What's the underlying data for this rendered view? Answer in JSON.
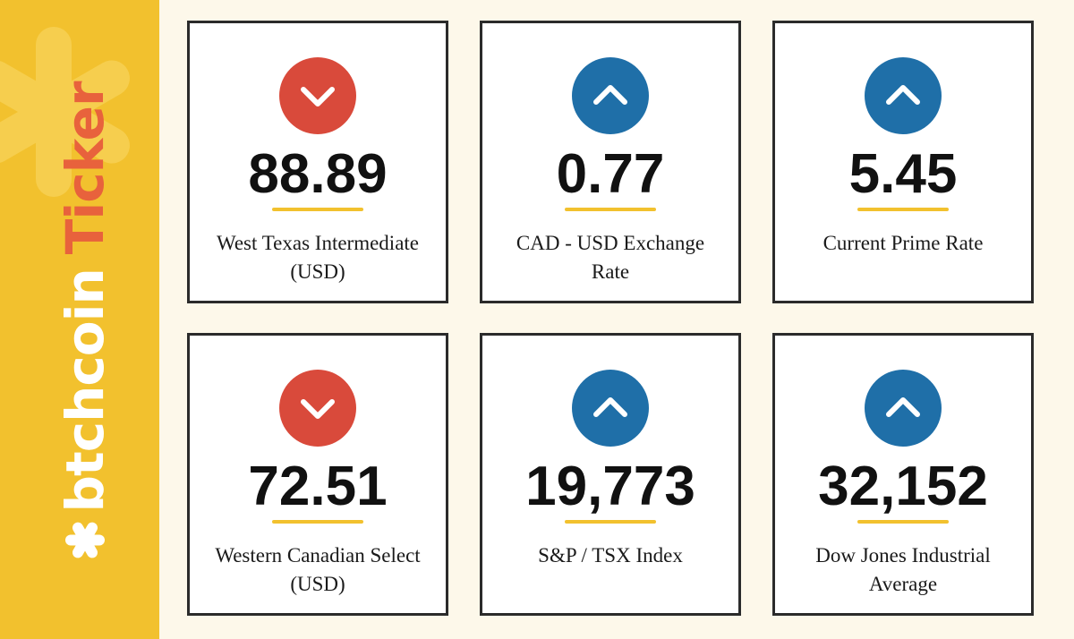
{
  "brand": {
    "name": "btchcoin",
    "suffix": "Ticker"
  },
  "colors": {
    "sidebar": "#f2c12e",
    "down": "#d94a3b",
    "up": "#1f6fa8",
    "accent": "#e8623c"
  },
  "tickers": [
    {
      "value": "88.89",
      "label": "West Texas Intermediate (USD)",
      "direction": "down",
      "icon": "chevron-down-icon"
    },
    {
      "value": "0.77",
      "label": "CAD - USD Exchange Rate",
      "direction": "up",
      "icon": "chevron-up-icon"
    },
    {
      "value": "5.45",
      "label": "Current Prime Rate",
      "direction": "up",
      "icon": "chevron-up-icon"
    },
    {
      "value": "72.51",
      "label": "Western Canadian Select (USD)",
      "direction": "down",
      "icon": "chevron-down-icon"
    },
    {
      "value": "19,773",
      "label": "S&P / TSX Index",
      "direction": "up",
      "icon": "chevron-up-icon"
    },
    {
      "value": "32,152",
      "label": "Dow Jones Industrial Average",
      "direction": "up",
      "icon": "chevron-up-icon"
    }
  ]
}
